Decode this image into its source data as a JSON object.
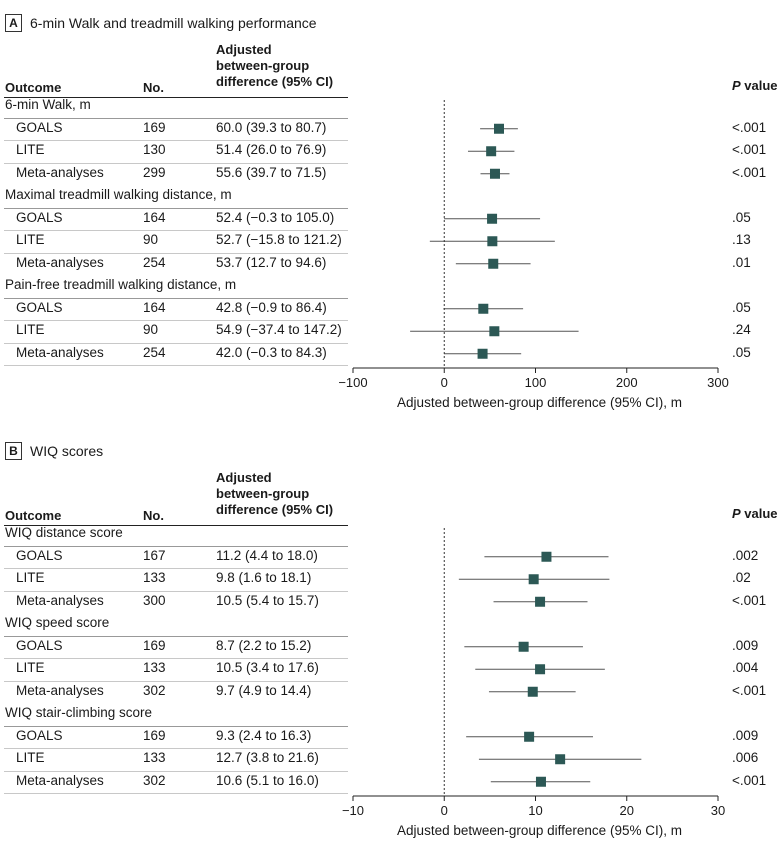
{
  "chart_data": [
    {
      "type": "forest",
      "panel_label": "A",
      "title": "6-min Walk and treadmill walking performance",
      "headers": {
        "outcome": "Outcome",
        "no": "No.",
        "ci_lines": [
          "Adjusted",
          "between-group",
          "difference (95% CI)"
        ],
        "p_letter": "P",
        "p_word": " value"
      },
      "xlabel": "Adjusted between-group difference (95% CI), m",
      "xlim": [
        -100,
        300
      ],
      "xticks": [
        -100,
        0,
        100,
        200,
        300
      ],
      "groups": [
        {
          "label": "6-min Walk, m",
          "rows": [
            {
              "name": "GOALS",
              "n": "169",
              "ci_text": "60.0 (39.3 to 80.7)",
              "est": 60.0,
              "lo": 39.3,
              "hi": 80.7,
              "p": "<.001"
            },
            {
              "name": "LITE",
              "n": "130",
              "ci_text": "51.4 (26.0 to 76.9)",
              "est": 51.4,
              "lo": 26.0,
              "hi": 76.9,
              "p": "<.001"
            },
            {
              "name": "Meta-analyses",
              "n": "299",
              "ci_text": "55.6 (39.7 to 71.5)",
              "est": 55.6,
              "lo": 39.7,
              "hi": 71.5,
              "p": "<.001"
            }
          ]
        },
        {
          "label": "Maximal treadmill walking distance, m",
          "rows": [
            {
              "name": "GOALS",
              "n": "164",
              "ci_text": "52.4 (−0.3 to 105.0)",
              "est": 52.4,
              "lo": -0.3,
              "hi": 105.0,
              "p": ".05"
            },
            {
              "name": "LITE",
              "n": "90",
              "ci_text": "52.7 (−15.8 to 121.2)",
              "est": 52.7,
              "lo": -15.8,
              "hi": 121.2,
              "p": ".13"
            },
            {
              "name": "Meta-analyses",
              "n": "254",
              "ci_text": "53.7 (12.7 to 94.6)",
              "est": 53.7,
              "lo": 12.7,
              "hi": 94.6,
              "p": ".01"
            }
          ]
        },
        {
          "label": "Pain-free treadmill walking distance, m",
          "rows": [
            {
              "name": "GOALS",
              "n": "164",
              "ci_text": "42.8 (−0.9 to 86.4)",
              "est": 42.8,
              "lo": -0.9,
              "hi": 86.4,
              "p": ".05"
            },
            {
              "name": "LITE",
              "n": "90",
              "ci_text": "54.9 (−37.4 to 147.2)",
              "est": 54.9,
              "lo": -37.4,
              "hi": 147.2,
              "p": ".24"
            },
            {
              "name": "Meta-analyses",
              "n": "254",
              "ci_text": "42.0 (−0.3 to 84.3)",
              "est": 42.0,
              "lo": -0.3,
              "hi": 84.3,
              "p": ".05"
            }
          ]
        }
      ]
    },
    {
      "type": "forest",
      "panel_label": "B",
      "title": "WIQ scores",
      "headers": {
        "outcome": "Outcome",
        "no": "No.",
        "ci_lines": [
          "Adjusted",
          "between-group",
          "difference (95% CI)"
        ],
        "p_letter": "P",
        "p_word": " value"
      },
      "xlabel": "Adjusted between-group difference (95% CI), m",
      "xlim": [
        -10,
        30
      ],
      "xticks": [
        -10,
        0,
        10,
        20,
        30
      ],
      "groups": [
        {
          "label": "WIQ distance score",
          "rows": [
            {
              "name": "GOALS",
              "n": "167",
              "ci_text": "11.2 (4.4 to 18.0)",
              "est": 11.2,
              "lo": 4.4,
              "hi": 18.0,
              "p": ".002"
            },
            {
              "name": "LITE",
              "n": "133",
              "ci_text": "9.8 (1.6 to 18.1)",
              "est": 9.8,
              "lo": 1.6,
              "hi": 18.1,
              "p": ".02"
            },
            {
              "name": "Meta-analyses",
              "n": "300",
              "ci_text": "10.5 (5.4 to 15.7)",
              "est": 10.5,
              "lo": 5.4,
              "hi": 15.7,
              "p": "<.001"
            }
          ]
        },
        {
          "label": "WIQ speed score",
          "rows": [
            {
              "name": "GOALS",
              "n": "169",
              "ci_text": "8.7 (2.2 to 15.2)",
              "est": 8.7,
              "lo": 2.2,
              "hi": 15.2,
              "p": ".009"
            },
            {
              "name": "LITE",
              "n": "133",
              "ci_text": "10.5 (3.4 to 17.6)",
              "est": 10.5,
              "lo": 3.4,
              "hi": 17.6,
              "p": ".004"
            },
            {
              "name": "Meta-analyses",
              "n": "302",
              "ci_text": "9.7 (4.9 to 14.4)",
              "est": 9.7,
              "lo": 4.9,
              "hi": 14.4,
              "p": "<.001"
            }
          ]
        },
        {
          "label": "WIQ stair-climbing score",
          "rows": [
            {
              "name": "GOALS",
              "n": "169",
              "ci_text": "9.3 (2.4 to 16.3)",
              "est": 9.3,
              "lo": 2.4,
              "hi": 16.3,
              "p": ".009"
            },
            {
              "name": "LITE",
              "n": "133",
              "ci_text": "12.7 (3.8 to 21.6)",
              "est": 12.7,
              "lo": 3.8,
              "hi": 21.6,
              "p": ".006"
            },
            {
              "name": "Meta-analyses",
              "n": "302",
              "ci_text": "10.6 (5.1 to 16.0)",
              "est": 10.6,
              "lo": 5.1,
              "hi": 16.0,
              "p": "<.001"
            }
          ]
        }
      ]
    }
  ],
  "colors": {
    "marker": "#2c5855",
    "ci_line": "#555555",
    "axis": "#222222",
    "ref_line": "#333333"
  }
}
